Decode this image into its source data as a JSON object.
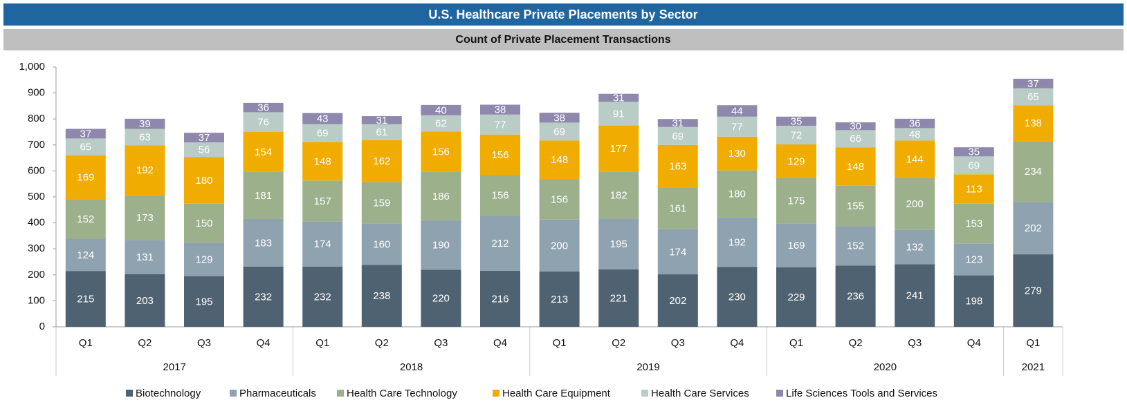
{
  "chart_data": {
    "type": "stacked_bar",
    "title": "U.S. Healthcare Private Placements by Sector",
    "subtitle": "Count of Private Placement Transactions",
    "groups": [
      {
        "name": "2017",
        "categories": [
          "Q1",
          "Q2",
          "Q3",
          "Q4"
        ]
      },
      {
        "name": "2018",
        "categories": [
          "Q1",
          "Q2",
          "Q3",
          "Q4"
        ]
      },
      {
        "name": "2019",
        "categories": [
          "Q1",
          "Q2",
          "Q3",
          "Q4"
        ]
      },
      {
        "name": "2020",
        "categories": [
          "Q1",
          "Q2",
          "Q3",
          "Q4"
        ]
      },
      {
        "name": "2021",
        "categories": [
          "Q1"
        ]
      }
    ],
    "series": [
      {
        "name": "Biotechnology",
        "color": "#4f6272",
        "values": [
          215,
          203,
          195,
          232,
          232,
          238,
          220,
          216,
          213,
          221,
          202,
          230,
          229,
          236,
          241,
          198,
          279
        ]
      },
      {
        "name": "Pharmaceuticals",
        "color": "#8fa2b0",
        "values": [
          124,
          131,
          129,
          183,
          174,
          160,
          190,
          212,
          200,
          195,
          174,
          192,
          169,
          152,
          132,
          123,
          202
        ]
      },
      {
        "name": "Health Care Technology",
        "color": "#9cb08c",
        "values": [
          152,
          173,
          150,
          181,
          157,
          159,
          186,
          156,
          156,
          182,
          161,
          180,
          175,
          155,
          200,
          153,
          234
        ]
      },
      {
        "name": "Health Care Equipment",
        "color": "#f0ad00",
        "values": [
          169,
          192,
          180,
          154,
          148,
          162,
          156,
          156,
          148,
          177,
          163,
          130,
          129,
          148,
          144,
          113,
          138
        ]
      },
      {
        "name": "Health Care Services",
        "color": "#b9ccc5",
        "values": [
          65,
          63,
          56,
          76,
          69,
          61,
          62,
          77,
          69,
          91,
          69,
          77,
          72,
          66,
          48,
          69,
          65
        ]
      },
      {
        "name": "Life Sciences Tools and Services",
        "color": "#8e88ad",
        "values": [
          37,
          39,
          37,
          36,
          43,
          31,
          40,
          38,
          38,
          31,
          31,
          44,
          35,
          30,
          36,
          35,
          37
        ]
      }
    ],
    "ylim": [
      0,
      1000
    ],
    "yticks": [
      0,
      100,
      200,
      300,
      400,
      500,
      600,
      700,
      800,
      900,
      {
        "value": 1000,
        "label": "1,000"
      }
    ],
    "legend": "bottom"
  }
}
